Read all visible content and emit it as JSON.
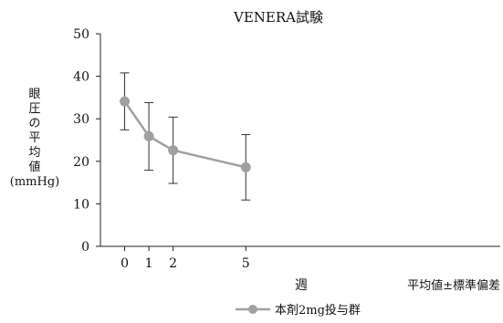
{
  "chart_data": {
    "type": "line",
    "title": "VENERA試験",
    "xlabel": "週",
    "ylabel_lines": [
      "眼",
      "圧",
      "の",
      "平",
      "均",
      "値",
      "(mmHg)"
    ],
    "note": "平均値±標準偏差",
    "x": [
      0,
      1,
      2,
      5
    ],
    "xticks": [
      0,
      1,
      2,
      5
    ],
    "yticks": [
      0,
      10,
      20,
      30,
      40,
      50
    ],
    "ylim": [
      0,
      50
    ],
    "xlim": [
      -1,
      15.5
    ],
    "grid": false,
    "legend_position": "bottom",
    "series": [
      {
        "name": "本剤2mg投与群",
        "color": "#a0a0a0",
        "values": [
          34.1,
          25.9,
          22.6,
          18.6
        ],
        "error_low": [
          27.4,
          17.9,
          14.8,
          10.9
        ],
        "error_high": [
          40.8,
          33.8,
          30.4,
          26.3
        ]
      }
    ]
  }
}
